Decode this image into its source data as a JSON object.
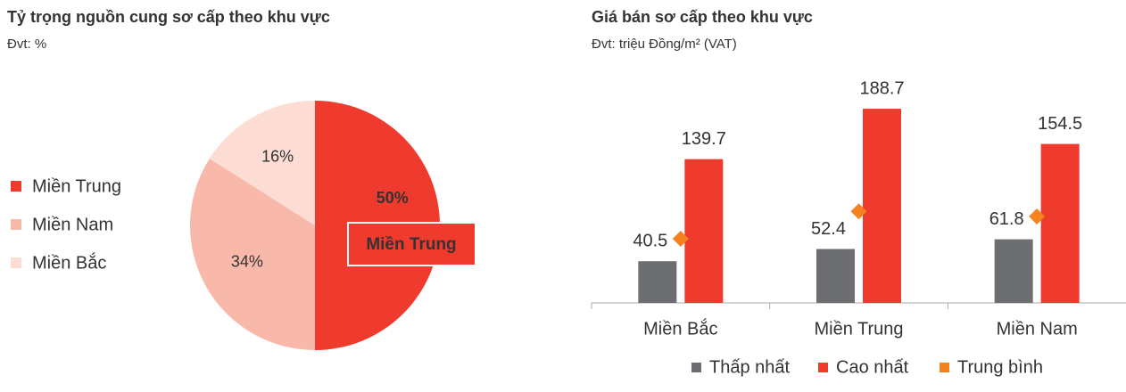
{
  "chart_data": [
    {
      "type": "pie",
      "title": "Tỷ trọng nguồn cung sơ cấp theo khu vực",
      "subtitle": "Đvt: %",
      "categories": [
        "Miền Trung",
        "Miền Nam",
        "Miền Bắc"
      ],
      "values": [
        50,
        34,
        16
      ],
      "value_labels": [
        "50%",
        "34%",
        "16%"
      ],
      "colors": [
        "#ee3b2e",
        "#f8b9ab",
        "#fddcd3"
      ],
      "annotation": "Miền Trung",
      "legend": "left"
    },
    {
      "type": "bar",
      "title": "Giá bán sơ cấp theo khu vực",
      "subtitle": "Đvt: triệu Đồng/m² (VAT)",
      "categories": [
        "Miền Bắc",
        "Miền Trung",
        "Miền Nam"
      ],
      "series": [
        {
          "name": "Thấp nhất",
          "color": "#6d6e71",
          "values": [
            40.5,
            52.4,
            61.8
          ]
        },
        {
          "name": "Cao nhất",
          "color": "#ee3b2e",
          "values": [
            139.7,
            188.7,
            154.5
          ]
        },
        {
          "name": "Trung bình",
          "color": "#f58220",
          "type": "scatter",
          "marker": "diamond",
          "values": [
            62.3,
            89,
            84
          ]
        }
      ],
      "ylim": [
        0,
        200
      ],
      "legend": "bottom"
    }
  ]
}
